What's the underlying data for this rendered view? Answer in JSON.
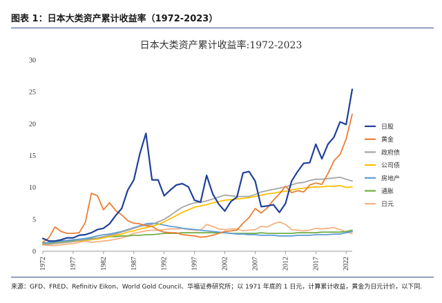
{
  "header": "图表 1：日本大类资产累计收益率（1972-2023）",
  "footer": "来源：GFD、FRED、Refinitiv Eikon、World Gold Council、华福证券研究所；以 1971 年底的 1 日元，计算累计收益，黄金为日元计价，以下同.",
  "chart_data": {
    "type": "line",
    "title": "日本大类资产累计收益率:1972-2023",
    "xlabel": "",
    "ylabel": "",
    "x": [
      1972,
      1973,
      1974,
      1975,
      1976,
      1977,
      1978,
      1979,
      1980,
      1981,
      1982,
      1983,
      1984,
      1985,
      1986,
      1987,
      1988,
      1989,
      1990,
      1991,
      1992,
      1993,
      1994,
      1995,
      1996,
      1997,
      1998,
      1999,
      2000,
      2001,
      2002,
      2003,
      2004,
      2005,
      2006,
      2007,
      2008,
      2009,
      2010,
      2011,
      2012,
      2013,
      2014,
      2015,
      2016,
      2017,
      2018,
      2019,
      2020,
      2021,
      2022,
      2023
    ],
    "x_ticks": [
      1972,
      1977,
      1982,
      1987,
      1992,
      1997,
      2002,
      2007,
      2012,
      2017,
      2022
    ],
    "ylim": [
      0,
      30
    ],
    "y_ticks": [
      0,
      5,
      10,
      15,
      20,
      25,
      30
    ],
    "grid": false,
    "legend": "right",
    "series": [
      {
        "name": "日股",
        "color": "#1f3f99",
        "width": 2.2,
        "values": [
          2.0,
          1.6,
          1.6,
          1.8,
          2.1,
          2.1,
          2.5,
          2.6,
          2.9,
          3.4,
          3.6,
          4.3,
          5.6,
          6.7,
          9.6,
          11.2,
          15.3,
          18.5,
          11.2,
          11.2,
          8.7,
          9.6,
          10.4,
          10.6,
          10.1,
          8.0,
          7.7,
          11.9,
          9.0,
          7.4,
          6.3,
          7.8,
          8.5,
          12.3,
          12.5,
          11.0,
          7.0,
          7.1,
          7.3,
          6.1,
          7.5,
          11.0,
          12.5,
          13.8,
          13.9,
          16.8,
          14.5,
          16.8,
          17.9,
          20.3,
          19.9,
          25.4
        ]
      },
      {
        "name": "黄金",
        "color": "#ec7d31",
        "width": 1.8,
        "values": [
          1.4,
          2.1,
          3.8,
          3.1,
          2.8,
          2.8,
          2.9,
          4.5,
          9.1,
          8.7,
          6.5,
          7.6,
          6.4,
          5.7,
          4.8,
          4.4,
          4.3,
          4.0,
          3.9,
          3.3,
          3.0,
          2.9,
          2.9,
          2.6,
          2.5,
          2.4,
          2.2,
          2.3,
          2.5,
          2.8,
          3.1,
          3.2,
          3.3,
          4.4,
          5.3,
          6.7,
          6.0,
          6.8,
          8.0,
          9.0,
          10.2,
          9.2,
          9.5,
          9.3,
          10.4,
          10.7,
          10.5,
          12.2,
          14.2,
          15.2,
          17.6,
          21.5
        ]
      },
      {
        "name": "政府债",
        "color": "#a5a5a5",
        "width": 1.8,
        "values": [
          1.1,
          1.1,
          1.2,
          1.3,
          1.4,
          1.5,
          1.7,
          1.8,
          1.9,
          2.1,
          2.3,
          2.5,
          2.7,
          3.0,
          3.3,
          3.6,
          3.9,
          4.1,
          4.2,
          4.6,
          5.0,
          5.6,
          6.3,
          6.9,
          7.3,
          7.6,
          7.7,
          7.9,
          8.2,
          8.5,
          8.8,
          8.7,
          8.6,
          8.6,
          8.6,
          8.9,
          9.3,
          9.5,
          9.7,
          9.9,
          10.1,
          10.4,
          10.7,
          10.8,
          11.1,
          11.3,
          11.3,
          11.4,
          11.5,
          11.6,
          11.3,
          11.0
        ]
      },
      {
        "name": "公司债",
        "color": "#ffc000",
        "width": 1.8,
        "values": [
          1.1,
          1.1,
          1.2,
          1.3,
          1.4,
          1.5,
          1.6,
          1.7,
          1.8,
          1.9,
          2.1,
          2.3,
          2.5,
          2.7,
          3.0,
          3.2,
          3.5,
          3.7,
          3.9,
          4.2,
          4.6,
          5.1,
          5.6,
          6.1,
          6.5,
          6.9,
          7.1,
          7.3,
          7.6,
          7.8,
          8.0,
          8.1,
          8.2,
          8.3,
          8.4,
          8.6,
          8.8,
          9.0,
          9.1,
          9.3,
          9.4,
          9.6,
          9.8,
          9.9,
          10.0,
          10.1,
          10.1,
          10.2,
          10.2,
          10.3,
          10.0,
          10.1
        ]
      },
      {
        "name": "房地产",
        "color": "#5b9bd5",
        "width": 1.8,
        "values": [
          1.3,
          1.4,
          1.5,
          1.6,
          1.7,
          1.8,
          1.9,
          2.0,
          2.2,
          2.4,
          2.6,
          2.7,
          2.9,
          3.1,
          3.4,
          3.7,
          4.0,
          4.3,
          4.4,
          4.3,
          4.1,
          3.9,
          3.8,
          3.6,
          3.5,
          3.4,
          3.3,
          3.2,
          3.1,
          3.0,
          2.9,
          2.8,
          2.7,
          2.7,
          2.6,
          2.6,
          2.5,
          2.5,
          2.5,
          2.4,
          2.4,
          2.4,
          2.5,
          2.5,
          2.5,
          2.6,
          2.6,
          2.6,
          2.7,
          2.7,
          2.9,
          3.1
        ]
      },
      {
        "name": "通胀",
        "color": "#70ad47",
        "width": 1.8,
        "values": [
          1.1,
          1.2,
          1.4,
          1.5,
          1.6,
          1.7,
          1.8,
          1.9,
          2.0,
          2.1,
          2.2,
          2.3,
          2.3,
          2.4,
          2.4,
          2.5,
          2.5,
          2.6,
          2.6,
          2.7,
          2.8,
          2.8,
          2.8,
          2.9,
          2.9,
          2.9,
          2.9,
          2.9,
          2.9,
          2.9,
          2.9,
          2.8,
          2.8,
          2.8,
          2.8,
          2.8,
          2.9,
          2.8,
          2.8,
          2.8,
          2.8,
          2.8,
          2.9,
          2.9,
          2.9,
          2.9,
          3.0,
          3.0,
          3.0,
          3.0,
          3.1,
          3.3
        ]
      },
      {
        "name": "日元",
        "color": "#f4b183",
        "width": 1.8,
        "values": [
          1.0,
          0.9,
          0.9,
          1.0,
          1.1,
          1.2,
          1.4,
          1.6,
          1.4,
          1.5,
          1.6,
          1.7,
          1.9,
          2.1,
          2.4,
          2.8,
          3.0,
          3.2,
          3.3,
          3.3,
          3.4,
          3.5,
          3.5,
          3.6,
          3.4,
          3.3,
          3.3,
          4.2,
          3.9,
          3.5,
          3.4,
          3.5,
          3.5,
          3.2,
          3.3,
          3.4,
          3.9,
          3.8,
          4.3,
          4.6,
          4.2,
          3.4,
          3.3,
          3.2,
          3.3,
          3.6,
          3.5,
          3.6,
          3.7,
          3.4,
          3.0,
          2.8
        ]
      }
    ]
  }
}
